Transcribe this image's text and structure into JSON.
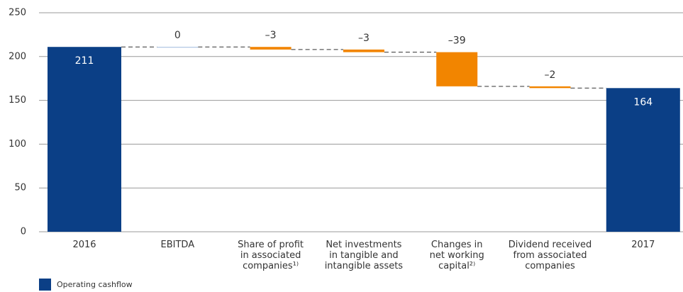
{
  "chart_data": {
    "type": "waterfall",
    "categories": [
      "2016",
      "EBITDA",
      "Share of profit\nin associated\ncompanies¹⁾",
      "Net investments\nin tangible and\nintangible assets",
      "Changes in\nnet working\ncapital²⁾",
      "Dividend received\nfrom associated\ncompanies",
      "2017"
    ],
    "values": [
      211,
      0,
      -3,
      -3,
      -39,
      -2,
      164
    ],
    "value_labels": [
      "211",
      "0",
      "–3",
      "–3",
      "–39",
      "–2",
      "164"
    ],
    "is_total": [
      true,
      false,
      false,
      false,
      false,
      false,
      true
    ],
    "legend": {
      "name": "Operating cashflow",
      "color": "#0b3f86"
    },
    "change_color": "#f28500",
    "ylim": [
      0,
      250
    ],
    "yticks": [
      0,
      50,
      100,
      150,
      200,
      250
    ],
    "grid": true
  }
}
